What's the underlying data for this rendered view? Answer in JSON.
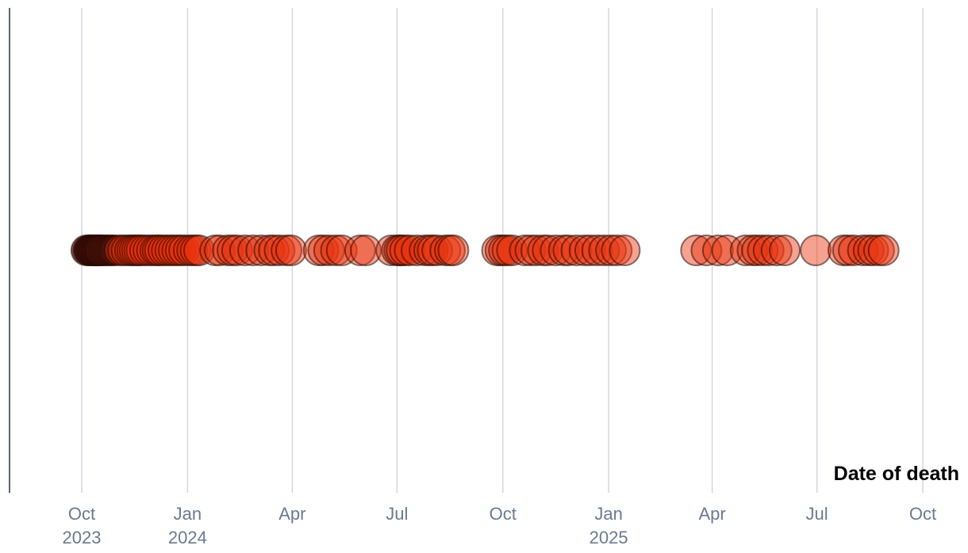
{
  "chart_data": {
    "type": "scatter",
    "xlabel": "Date of death",
    "ylabel": "",
    "xlim": [
      "2023-09-01",
      "2025-10-15"
    ],
    "grid": true,
    "x_ticks": [
      {
        "date": "2023-10-01",
        "label": "Oct",
        "sublabel": "2023"
      },
      {
        "date": "2024-01-01",
        "label": "Jan",
        "sublabel": "2024"
      },
      {
        "date": "2024-04-01",
        "label": "Apr",
        "sublabel": ""
      },
      {
        "date": "2024-07-01",
        "label": "Jul",
        "sublabel": ""
      },
      {
        "date": "2024-10-01",
        "label": "Oct",
        "sublabel": ""
      },
      {
        "date": "2025-01-01",
        "label": "Jan",
        "sublabel": "2025"
      },
      {
        "date": "2025-04-01",
        "label": "Apr",
        "sublabel": ""
      },
      {
        "date": "2025-07-01",
        "label": "Jul",
        "sublabel": ""
      },
      {
        "date": "2025-10-01",
        "label": "Oct",
        "sublabel": ""
      }
    ],
    "points": [
      "2023-10-05",
      "2023-10-07",
      "2023-10-08",
      "2023-10-09",
      "2023-10-10",
      "2023-10-11",
      "2023-10-12",
      "2023-10-13",
      "2023-10-14",
      "2023-10-15",
      "2023-10-16",
      "2023-10-17",
      "2023-10-18",
      "2023-10-20",
      "2023-10-22",
      "2023-10-24",
      "2023-10-26",
      "2023-10-28",
      "2023-10-30",
      "2023-11-03",
      "2023-11-06",
      "2023-11-09",
      "2023-11-12",
      "2023-11-14",
      "2023-11-16",
      "2023-11-18",
      "2023-11-20",
      "2023-11-22",
      "2023-11-25",
      "2023-11-28",
      "2023-12-01",
      "2023-12-04",
      "2023-12-06",
      "2023-12-08",
      "2023-12-11",
      "2023-12-14",
      "2023-12-17",
      "2023-12-20",
      "2023-12-23",
      "2023-12-26",
      "2023-12-29",
      "2024-01-02",
      "2024-01-05",
      "2024-01-08",
      "2024-01-11",
      "2024-01-25",
      "2024-01-29",
      "2024-02-05",
      "2024-02-09",
      "2024-02-13",
      "2024-02-20",
      "2024-02-27",
      "2024-03-05",
      "2024-03-12",
      "2024-03-16",
      "2024-03-21",
      "2024-03-27",
      "2024-03-31",
      "2024-04-24",
      "2024-04-28",
      "2024-05-03",
      "2024-05-09",
      "2024-05-14",
      "2024-05-30",
      "2024-06-04",
      "2024-06-26",
      "2024-07-01",
      "2024-07-03",
      "2024-07-05",
      "2024-07-08",
      "2024-07-12",
      "2024-07-18",
      "2024-07-25",
      "2024-07-29",
      "2024-08-01",
      "2024-08-05",
      "2024-08-12",
      "2024-08-16",
      "2024-08-19",
      "2024-09-26",
      "2024-09-29",
      "2024-10-02",
      "2024-10-05",
      "2024-10-09",
      "2024-10-20",
      "2024-10-25",
      "2024-10-30",
      "2024-11-05",
      "2024-11-09",
      "2024-11-16",
      "2024-11-23",
      "2024-11-27",
      "2024-12-04",
      "2024-12-11",
      "2024-12-16",
      "2024-12-22",
      "2024-12-28",
      "2025-01-03",
      "2025-01-08",
      "2025-01-15",
      "2025-03-18",
      "2025-03-27",
      "2025-04-06",
      "2025-04-14",
      "2025-04-30",
      "2025-05-06",
      "2025-05-10",
      "2025-05-15",
      "2025-05-20",
      "2025-05-27",
      "2025-06-03",
      "2025-06-30",
      "2025-07-24",
      "2025-07-28",
      "2025-08-02",
      "2025-08-10",
      "2025-08-15",
      "2025-08-19",
      "2025-08-24",
      "2025-08-28"
    ],
    "colors": {
      "dark": "#4a1208",
      "main": "#e8300a",
      "stroke": "#2a0a04",
      "grid": "#d2d6de",
      "tick": "#6b7a90",
      "axis": "#5a6478"
    }
  }
}
